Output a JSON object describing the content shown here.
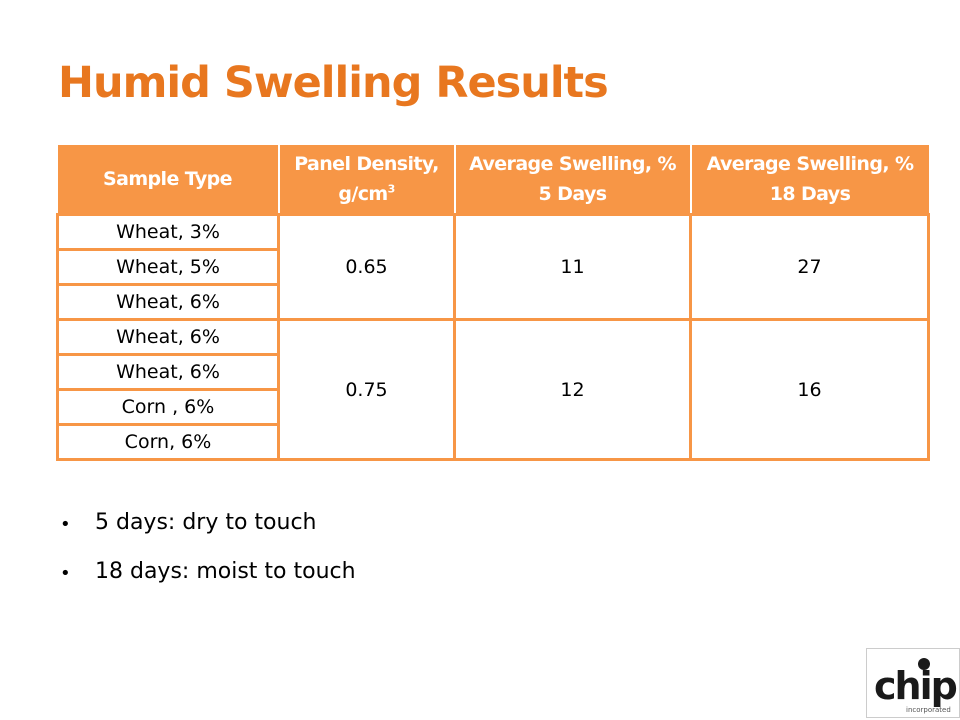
{
  "slide": {
    "title": "Humid Swelling Results",
    "accent_color": "#e8771f",
    "table_header_color": "#f79646"
  },
  "table": {
    "headers": [
      {
        "line1": "Sample Type",
        "line2": ""
      },
      {
        "line1": "Panel Density,",
        "line2": "g/cm",
        "sup": "3"
      },
      {
        "line1": "Average Swelling, %",
        "line2": "5 Days"
      },
      {
        "line1": "Average Swelling, %",
        "line2": "18 Days"
      }
    ],
    "sample_types": [
      "Wheat, 3%",
      "Wheat, 5%",
      "Wheat, 6%",
      "Wheat, 6%",
      "Wheat, 6%",
      "Corn , 6%",
      "Corn, 6%"
    ],
    "groups": [
      {
        "density": "0.65",
        "swelling_5_days": "11",
        "swelling_18_days": "27"
      },
      {
        "density": "0.75",
        "swelling_5_days": "12",
        "swelling_18_days": "16"
      }
    ]
  },
  "bullets": [
    "5 days: dry to touch",
    "18 days: moist to touch"
  ],
  "logo": {
    "name": "chip-logo",
    "text": "chip",
    "subtext": "incorporated"
  }
}
